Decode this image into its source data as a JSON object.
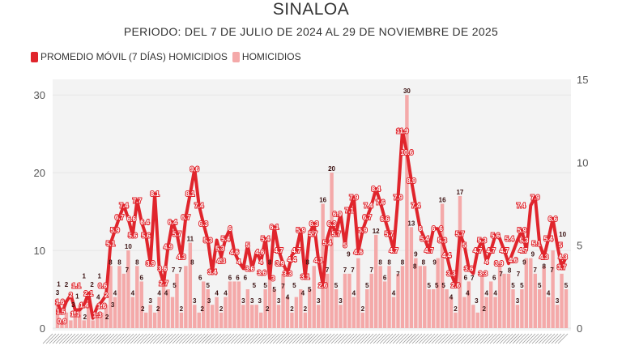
{
  "chart_data": {
    "type": "bar+line",
    "title": "SINALOA",
    "subtitle": "PERIODO: DEL 7 DE JULIO DE 2024 AL 29 DE NOVIEMBRE DE 2025",
    "legend_position": "top-left",
    "grid": true,
    "colors": {
      "moving_average": "#e0252c",
      "homicides": "#f4a9a9"
    },
    "y_left": {
      "ticks": [
        0,
        10,
        20,
        30
      ],
      "ylim": [
        0,
        32
      ]
    },
    "y_right": {
      "ticks": [
        0,
        5,
        10,
        15
      ],
      "ylim": [
        0,
        15
      ]
    },
    "series": [
      {
        "name": "PROMEDIO MÓVIL (7 DÍAS) HOMICIDIOS",
        "type": "line",
        "axis": "right",
        "values": [
          1.5,
          0.9,
          1.6,
          2.0,
          1.1,
          1.1,
          1.4,
          2.1,
          0.6,
          1.3,
          1.6,
          2.0,
          5.1,
          5.9,
          6.7,
          7.4,
          6.6,
          5.6,
          7.7,
          6.4,
          5.6,
          3.9,
          8.1,
          3.6,
          2.7,
          4.9,
          6.4,
          5.7,
          4.3,
          6.7,
          8.1,
          9.6,
          7.4,
          6.3,
          5.3,
          3.4,
          5.3,
          4.3,
          5.4,
          6,
          4.6,
          4,
          3.6,
          5,
          3.6,
          4.6,
          4,
          5.4,
          3,
          6.1,
          4.7,
          3.9,
          3.3,
          4.4,
          4.7,
          5.9,
          3.1,
          5.7,
          6.3,
          4.1,
          2.6,
          5.4,
          6.3,
          5.7,
          6.9,
          5,
          7.1,
          7.9,
          4.6,
          5.9,
          6.7,
          7.4,
          8.4,
          7.6,
          6.6,
          5.7,
          4.7,
          7.9,
          11.9,
          10.6,
          8.9,
          7.4,
          6,
          5.4,
          4.7,
          6,
          6,
          5.3,
          4.4,
          3.3,
          2.6,
          5.7,
          5,
          3.6,
          3.3,
          4.7,
          5.3,
          4,
          4.7,
          5.6,
          5.4,
          4.7,
          3.9,
          4.6,
          5.3,
          5.9,
          4.7,
          7.4,
          7.9,
          5.1,
          4.3,
          5.4,
          6.6,
          5,
          3.7,
          4.3
        ]
      },
      {
        "name": "HOMICIDIOS",
        "type": "bar",
        "axis": "left",
        "values": [
          3,
          1,
          2,
          1,
          2,
          3,
          1,
          4,
          1,
          2,
          2,
          3,
          8,
          4,
          8,
          7,
          10,
          4,
          8,
          6,
          2,
          3,
          2,
          4,
          7,
          5,
          4,
          7,
          2,
          8,
          11,
          3,
          2,
          6,
          5,
          3,
          4,
          2,
          4,
          6,
          6,
          6,
          3,
          5,
          3,
          3,
          2,
          5,
          8,
          5,
          3,
          7,
          4,
          2,
          4,
          5,
          2,
          5,
          8,
          3,
          16,
          7,
          20,
          5,
          3,
          7,
          7,
          4,
          9,
          2,
          5,
          7,
          12,
          8,
          6,
          8,
          4,
          7,
          8,
          30,
          13,
          9,
          8,
          8,
          5,
          5,
          9,
          16,
          5,
          4,
          2,
          17,
          4,
          6,
          3,
          2,
          7,
          4,
          6,
          4,
          8,
          7,
          7,
          5,
          3,
          5,
          9,
          9,
          7,
          5,
          8,
          4,
          10,
          3,
          7,
          5
        ]
      }
    ]
  }
}
